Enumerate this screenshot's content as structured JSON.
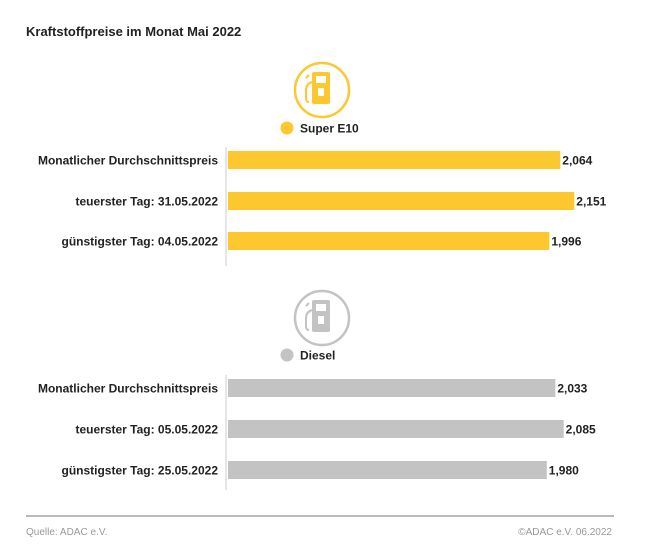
{
  "chart_data": [
    {
      "type": "bar",
      "orientation": "horizontal",
      "title": "Kraftstoffpreise im Monat Mai 2022",
      "series_name": "Super E10",
      "icon": "fuel-pump-icon",
      "color": "#FDC82F",
      "categories": [
        "Monatlicher Durchschnittspreis",
        "teuerster Tag: 31.05.2022",
        "günstigster Tag: 04.05.2022"
      ],
      "values": [
        2.064,
        2.151,
        1.996
      ],
      "labels": [
        "2,064",
        "2,151",
        "1,996"
      ],
      "xlim": [
        0,
        2.2
      ]
    },
    {
      "type": "bar",
      "orientation": "horizontal",
      "series_name": "Diesel",
      "icon": "fuel-pump-icon",
      "color": "#C3C3C3",
      "categories": [
        "Monatlicher Durchschnittspreis",
        "teuerster Tag: 05.05.2022",
        "günstigster Tag: 25.05.2022"
      ],
      "values": [
        2.033,
        2.085,
        1.98
      ],
      "labels": [
        "2,033",
        "2,085",
        "1,980"
      ],
      "xlim": [
        0,
        2.2
      ]
    }
  ],
  "footer": {
    "source": "Quelle: ADAC e.V.",
    "copyright": "©ADAC e.V. 06.2022"
  }
}
